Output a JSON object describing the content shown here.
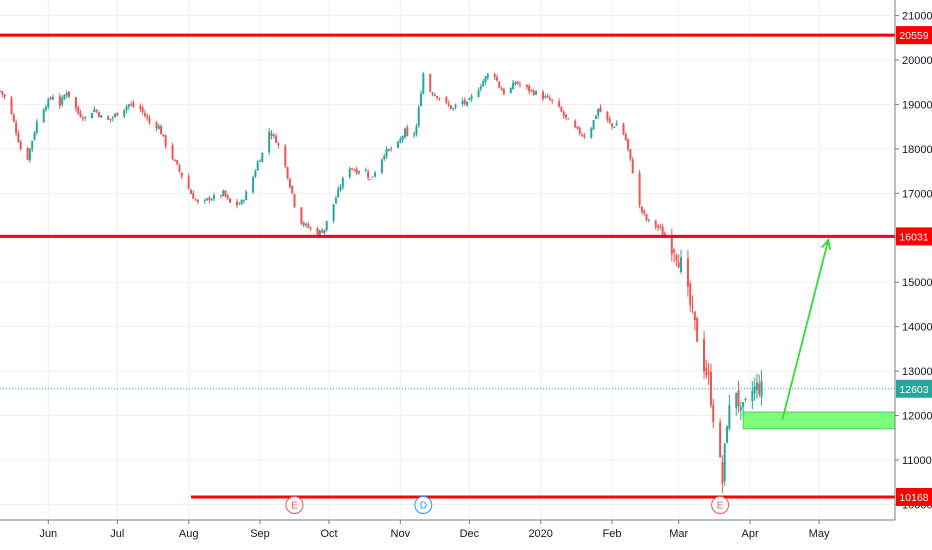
{
  "chart_data": {
    "type": "candlestick",
    "y_axis": {
      "ylim": [
        9650,
        21350
      ],
      "ticks": [
        "21000",
        "20000",
        "19000",
        "18000",
        "17000",
        "16000",
        "15000",
        "14000",
        "13000",
        "12000",
        "11000",
        "10000"
      ],
      "position": "right"
    },
    "x_axis": {
      "ticks": [
        {
          "label": "Jun",
          "day": 30
        },
        {
          "label": "Jul",
          "day": 60
        },
        {
          "label": "Aug",
          "day": 91
        },
        {
          "label": "Sep",
          "day": 122
        },
        {
          "label": "Oct",
          "day": 152
        },
        {
          "label": "Nov",
          "day": 183
        },
        {
          "label": "Dec",
          "day": 213
        },
        {
          "label": "2020",
          "day": 244
        },
        {
          "label": "Feb",
          "day": 275
        },
        {
          "label": "Mar",
          "day": 304
        },
        {
          "label": "Apr",
          "day": 335
        },
        {
          "label": "May",
          "day": 365
        }
      ],
      "xlim": [
        9,
        398
      ]
    },
    "price_levels": [
      {
        "label": "20559",
        "value": 20559,
        "color": "#ff0000",
        "from_day": 9
      },
      {
        "label": "16031",
        "value": 16031,
        "color": "#ff0000",
        "from_day": 9
      },
      {
        "label": "10168",
        "value": 10168,
        "color": "#ff0000",
        "from_day": 92
      }
    ],
    "last_price": {
      "label": "12603",
      "value": 12603,
      "color": "#26a69a"
    },
    "zone": {
      "from_day": 332,
      "to_day": 398,
      "low": 11700,
      "high": 12080,
      "color": "#66ff66"
    },
    "arrow": {
      "from_day": 349,
      "from_value": 11900,
      "to_day": 369,
      "to_value": 15950,
      "color": "#33dd33"
    },
    "events": [
      {
        "label": "E",
        "day": 137,
        "color": "#ef5350"
      },
      {
        "label": "D",
        "day": 193,
        "color": "#2196f3"
      },
      {
        "label": "E",
        "day": 322,
        "color": "#ef5350"
      }
    ],
    "key_points": [
      [
        9,
        19300
      ],
      [
        12,
        19100
      ],
      [
        15,
        18600
      ],
      [
        18,
        18000
      ],
      [
        20,
        17600
      ],
      [
        23,
        18200
      ],
      [
        26,
        18800
      ],
      [
        29,
        19000
      ],
      [
        32,
        19200
      ],
      [
        35,
        19000
      ],
      [
        38,
        19300
      ],
      [
        40,
        19100
      ],
      [
        43,
        18800
      ],
      [
        46,
        18700
      ],
      [
        50,
        18900
      ],
      [
        55,
        18600
      ],
      [
        60,
        18800
      ],
      [
        65,
        19000
      ],
      [
        70,
        18900
      ],
      [
        74,
        18600
      ],
      [
        78,
        18500
      ],
      [
        81,
        18100
      ],
      [
        84,
        17800
      ],
      [
        88,
        17400
      ],
      [
        92,
        17000
      ],
      [
        96,
        16700
      ],
      [
        100,
        16900
      ],
      [
        103,
        16900
      ],
      [
        106,
        17000
      ],
      [
        110,
        16700
      ],
      [
        114,
        16800
      ],
      [
        118,
        17200
      ],
      [
        121,
        17700
      ],
      [
        124,
        18000
      ],
      [
        126,
        18400
      ],
      [
        129,
        18200
      ],
      [
        132,
        17800
      ],
      [
        134,
        17400
      ],
      [
        136,
        17000
      ],
      [
        138,
        16500
      ],
      [
        141,
        16300
      ],
      [
        144,
        16200
      ],
      [
        147,
        16100
      ],
      [
        150,
        16200
      ],
      [
        152,
        16500
      ],
      [
        155,
        16900
      ],
      [
        158,
        17300
      ],
      [
        161,
        17600
      ],
      [
        164,
        17500
      ],
      [
        167,
        17600
      ],
      [
        170,
        17300
      ],
      [
        173,
        17600
      ],
      [
        176,
        17900
      ],
      [
        179,
        18000
      ],
      [
        182,
        18100
      ],
      [
        185,
        18400
      ],
      [
        187,
        18100
      ],
      [
        190,
        18500
      ],
      [
        193,
        19700
      ],
      [
        196,
        19300
      ],
      [
        199,
        19200
      ],
      [
        203,
        19000
      ],
      [
        206,
        18900
      ],
      [
        209,
        19100
      ],
      [
        212,
        19000
      ],
      [
        216,
        19300
      ],
      [
        220,
        19600
      ],
      [
        223,
        19800
      ],
      [
        226,
        19400
      ],
      [
        229,
        19200
      ],
      [
        233,
        19500
      ],
      [
        236,
        19400
      ],
      [
        240,
        19300
      ],
      [
        244,
        19200
      ],
      [
        248,
        19100
      ],
      [
        252,
        18900
      ],
      [
        256,
        18600
      ],
      [
        260,
        18400
      ],
      [
        263,
        18300
      ],
      [
        266,
        18500
      ],
      [
        269,
        18900
      ],
      [
        272,
        18700
      ],
      [
        275,
        18500
      ],
      [
        278,
        18600
      ],
      [
        281,
        18200
      ],
      [
        284,
        17500
      ],
      [
        287,
        16700
      ],
      [
        290,
        16400
      ],
      [
        293,
        16300
      ],
      [
        296,
        16200
      ],
      [
        299,
        15900
      ],
      [
        302,
        15800
      ],
      [
        305,
        15400
      ],
      [
        308,
        14700
      ],
      [
        311,
        14000
      ],
      [
        314,
        13300
      ],
      [
        317,
        12800
      ],
      [
        319,
        12000
      ],
      [
        321,
        11300
      ],
      [
        323,
        10500
      ],
      [
        325,
        11900
      ],
      [
        327,
        12300
      ],
      [
        329,
        12600
      ],
      [
        331,
        12000
      ],
      [
        333,
        12200
      ],
      [
        335,
        12500
      ],
      [
        338,
        12650
      ],
      [
        341,
        12600
      ]
    ]
  }
}
